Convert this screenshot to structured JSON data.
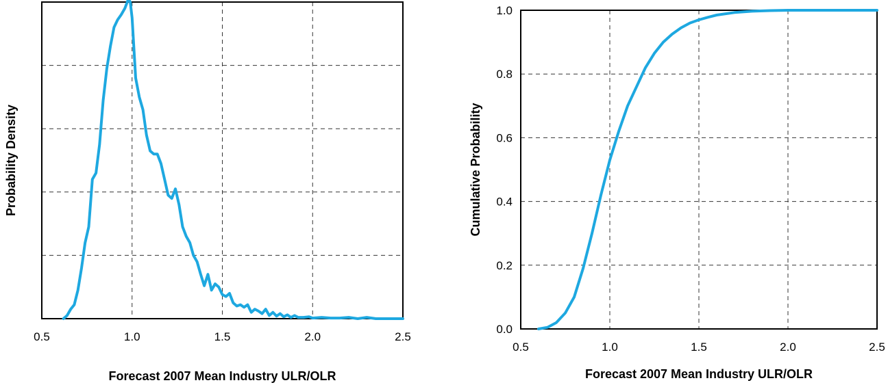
{
  "chart_data": [
    {
      "type": "line",
      "title": "",
      "xlabel": "Forecast 2007 Mean Industry ULR/OLR",
      "ylabel": "Probability Density",
      "xlim": [
        0.5,
        2.5
      ],
      "ylim": [
        0,
        5
      ],
      "x_ticks": [
        "0.5",
        "1.0",
        "1.5",
        "2.0",
        "2.5"
      ],
      "y_ticks": [],
      "grid": true,
      "y_tick_labels_shown": false,
      "line_color": "#1ea8e0",
      "series": [
        {
          "name": "",
          "x": [
            0.62,
            0.64,
            0.66,
            0.68,
            0.7,
            0.72,
            0.74,
            0.76,
            0.78,
            0.8,
            0.82,
            0.84,
            0.86,
            0.88,
            0.9,
            0.92,
            0.94,
            0.96,
            0.98,
            0.99,
            1.0,
            1.02,
            1.04,
            1.06,
            1.08,
            1.1,
            1.12,
            1.14,
            1.16,
            1.18,
            1.2,
            1.22,
            1.24,
            1.26,
            1.28,
            1.3,
            1.32,
            1.34,
            1.36,
            1.38,
            1.4,
            1.42,
            1.44,
            1.46,
            1.48,
            1.5,
            1.52,
            1.54,
            1.56,
            1.58,
            1.6,
            1.62,
            1.64,
            1.66,
            1.68,
            1.7,
            1.72,
            1.74,
            1.76,
            1.78,
            1.8,
            1.82,
            1.84,
            1.86,
            1.88,
            1.9,
            1.92,
            1.95,
            1.98,
            2.0,
            2.05,
            2.1,
            2.15,
            2.2,
            2.25,
            2.3,
            2.35,
            2.4,
            2.5
          ],
          "y": [
            0.0,
            0.05,
            0.15,
            0.22,
            0.45,
            0.8,
            1.2,
            1.45,
            2.2,
            2.3,
            2.75,
            3.45,
            3.95,
            4.3,
            4.6,
            4.72,
            4.8,
            4.9,
            5.05,
            5.0,
            4.75,
            3.8,
            3.5,
            3.3,
            2.9,
            2.65,
            2.6,
            2.6,
            2.45,
            2.2,
            1.95,
            1.9,
            2.05,
            1.8,
            1.45,
            1.3,
            1.2,
            1.0,
            0.9,
            0.7,
            0.52,
            0.7,
            0.45,
            0.55,
            0.5,
            0.38,
            0.35,
            0.4,
            0.25,
            0.2,
            0.22,
            0.18,
            0.22,
            0.1,
            0.15,
            0.12,
            0.08,
            0.15,
            0.05,
            0.1,
            0.04,
            0.08,
            0.03,
            0.06,
            0.02,
            0.05,
            0.02,
            0.02,
            0.03,
            0.01,
            0.02,
            0.01,
            0.01,
            0.02,
            0.0,
            0.02,
            0.0,
            0.0,
            0.0
          ]
        }
      ]
    },
    {
      "type": "line",
      "title": "",
      "xlabel": "Forecast 2007 Mean Industry ULR/OLR",
      "ylabel": "Cumulative Probability",
      "xlim": [
        0.5,
        2.5
      ],
      "ylim": [
        0.0,
        1.0
      ],
      "x_ticks": [
        "0.5",
        "1.0",
        "1.5",
        "2.0",
        "2.5"
      ],
      "y_ticks": [
        "0.0",
        "0.2",
        "0.4",
        "0.6",
        "0.8",
        "1.0"
      ],
      "grid": true,
      "line_color": "#1ea8e0",
      "series": [
        {
          "name": "",
          "x": [
            0.6,
            0.65,
            0.7,
            0.75,
            0.8,
            0.85,
            0.9,
            0.95,
            1.0,
            1.05,
            1.1,
            1.15,
            1.2,
            1.25,
            1.3,
            1.35,
            1.4,
            1.45,
            1.5,
            1.55,
            1.6,
            1.7,
            1.8,
            1.9,
            2.0,
            2.2,
            2.5
          ],
          "y": [
            0.0,
            0.005,
            0.02,
            0.05,
            0.1,
            0.19,
            0.3,
            0.42,
            0.53,
            0.62,
            0.7,
            0.76,
            0.82,
            0.865,
            0.9,
            0.925,
            0.945,
            0.96,
            0.97,
            0.978,
            0.985,
            0.993,
            0.997,
            0.999,
            1.0,
            1.0,
            1.0
          ]
        }
      ]
    }
  ]
}
